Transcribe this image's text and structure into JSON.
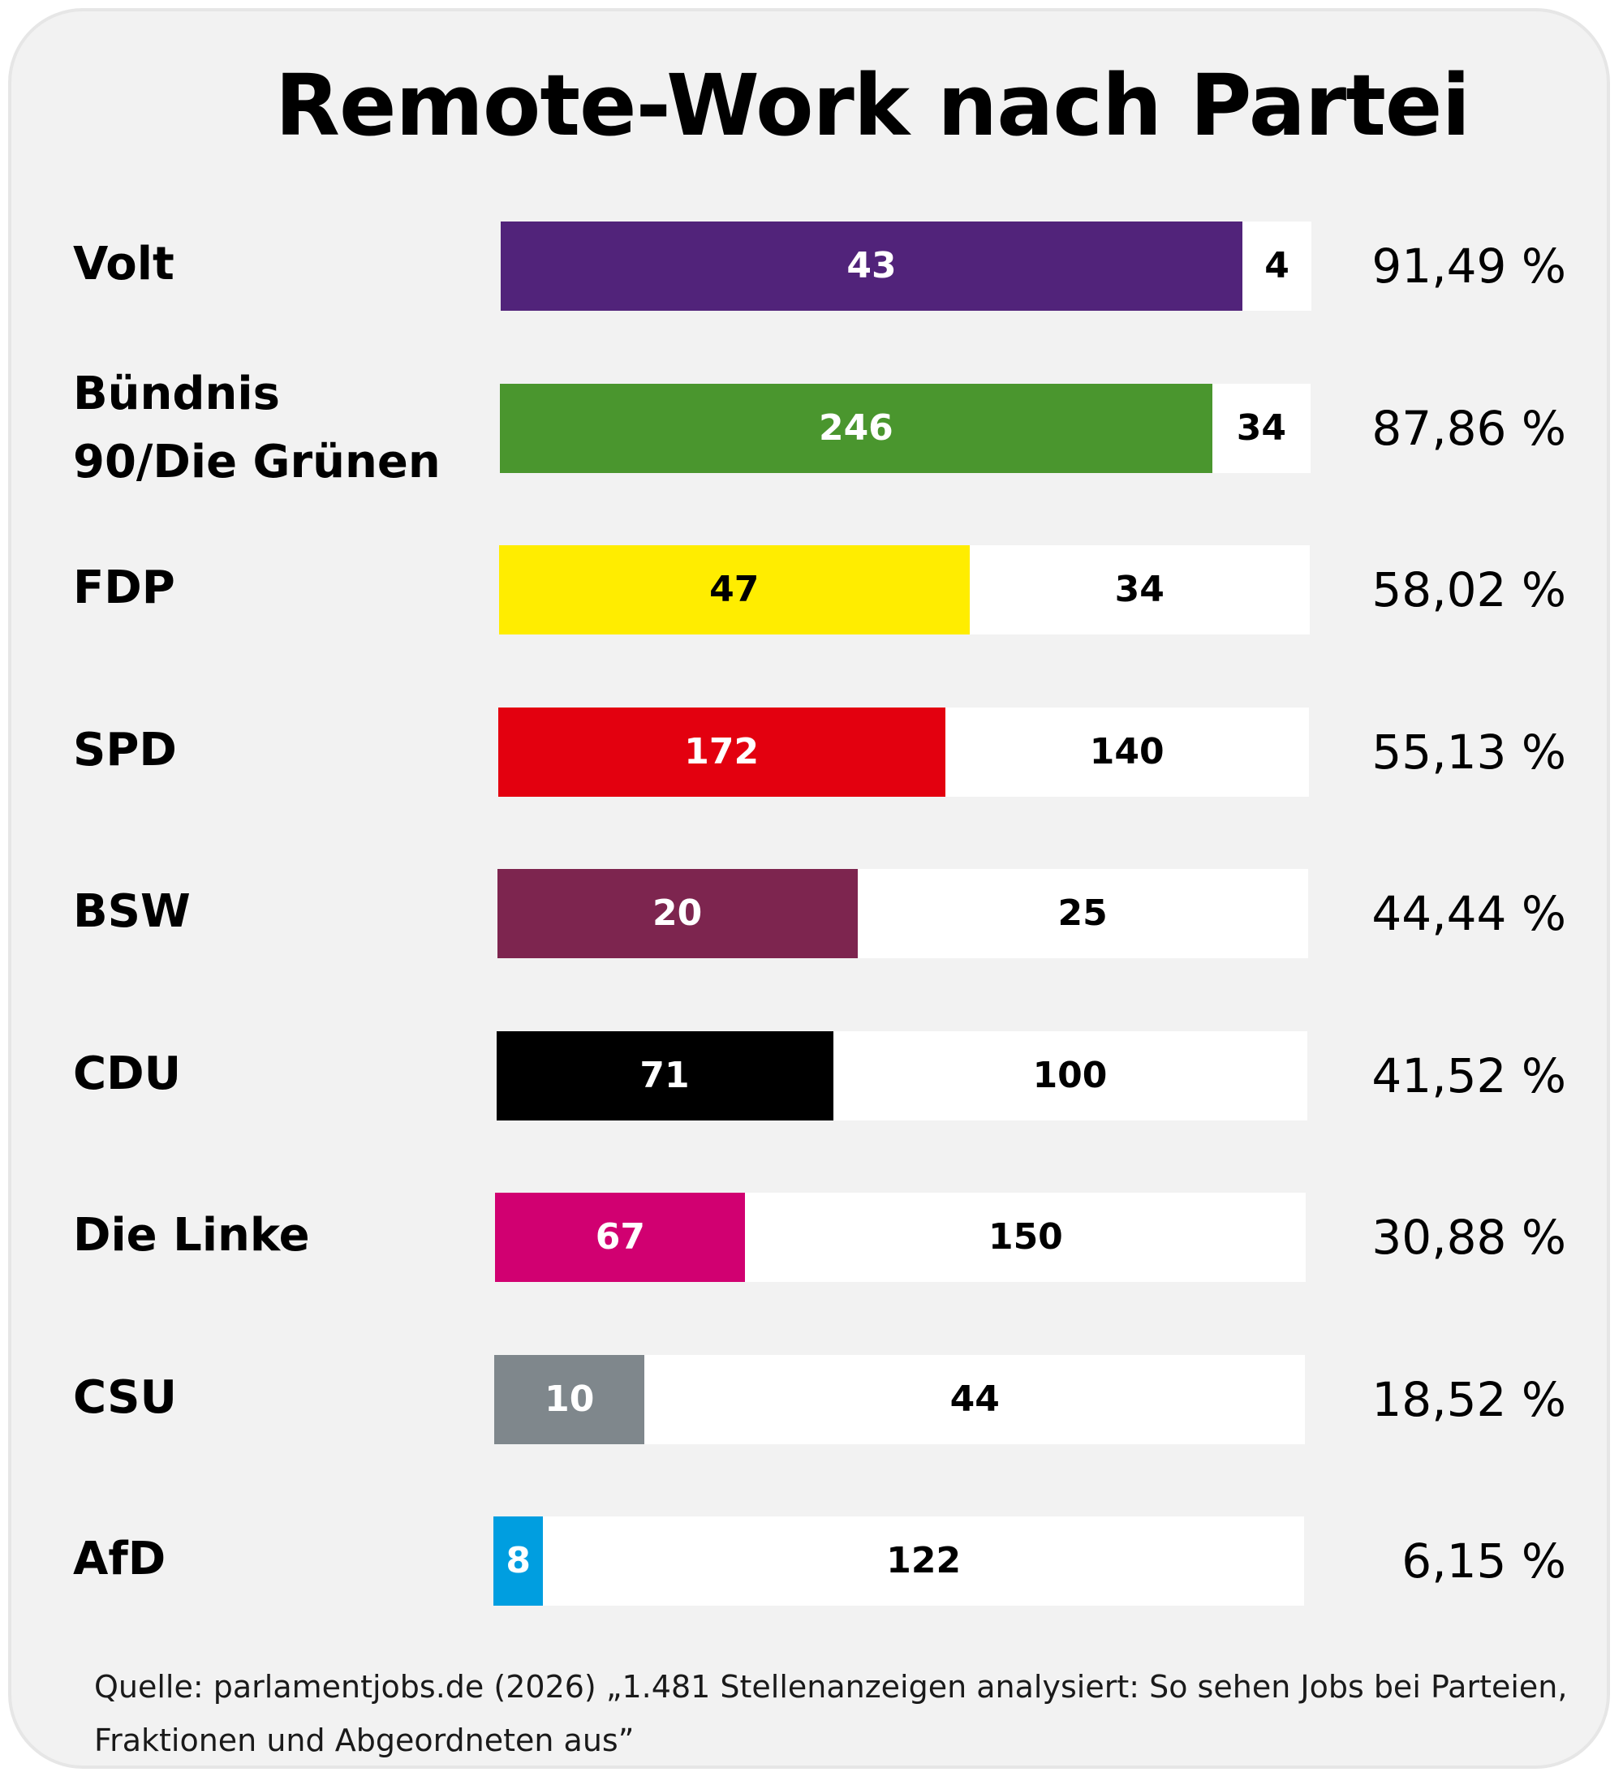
{
  "title": "Remote-Work nach Partei",
  "source": "Quelle: parlamentjobs.de (2026) „1.481 Stellenanzeigen analysiert: So sehen Jobs bei Parteien, Fraktionen und Abgeordneten aus”",
  "chart_data": {
    "type": "bar",
    "orientation": "horizontal",
    "stacked": true,
    "normalized": true,
    "title": "Remote-Work nach Partei",
    "xlabel": "",
    "ylabel": "",
    "grid": false,
    "legend": "none",
    "categories": [
      "Volt",
      "Bündnis 90/Die Grünen",
      "FDP",
      "SPD",
      "BSW",
      "CDU",
      "Die Linke",
      "CSU",
      "AfD"
    ],
    "series": [
      {
        "name": "remote",
        "values": [
          43,
          246,
          47,
          172,
          20,
          71,
          67,
          10,
          8
        ]
      },
      {
        "name": "not_remote",
        "values": [
          4,
          34,
          34,
          140,
          25,
          100,
          150,
          44,
          122
        ]
      }
    ],
    "percent_labels": [
      "91,49 %",
      "87,86 %",
      "58,02 %",
      "55,13 %",
      "44,44 %",
      "41,52 %",
      "30,88 %",
      "18,52 %",
      "6,15 %"
    ],
    "percent_values": [
      91.49,
      87.86,
      58.02,
      55.13,
      44.44,
      41.52,
      30.88,
      18.52,
      6.15
    ],
    "colors": [
      "#51237A",
      "#4A962E",
      "#FFED00",
      "#E3000F",
      "#7D254F",
      "#000000",
      "#D10071",
      "#7F878C",
      "#009EE0"
    ],
    "remote_label_colors": [
      "#ffffff",
      "#ffffff",
      "#000000",
      "#ffffff",
      "#ffffff",
      "#ffffff",
      "#ffffff",
      "#ffffff",
      "#ffffff"
    ],
    "remainder_color": "#ffffff",
    "source": "Quelle: parlamentjobs.de (2026) „1.481 Stellenanzeigen analysiert: So sehen Jobs bei Parteien, Fraktionen und Abgeordneten aus”"
  }
}
